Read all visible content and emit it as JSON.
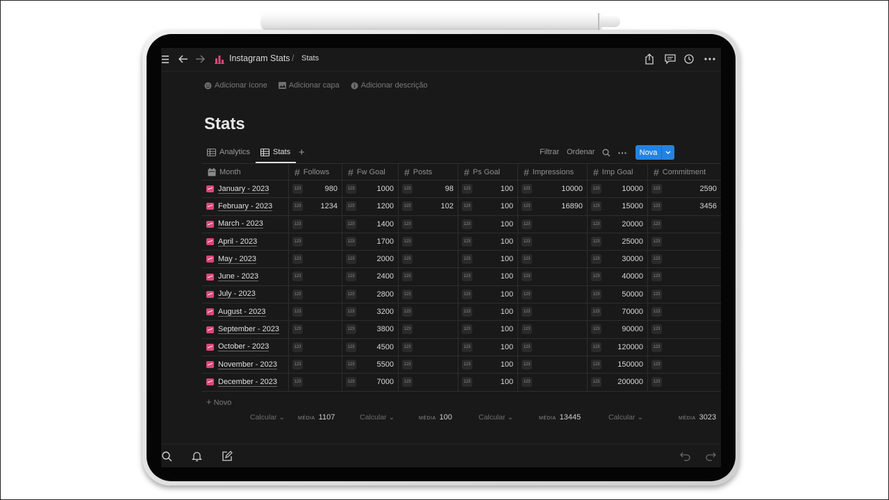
{
  "topbar": {
    "title": "Instagram Stats",
    "separator": "/",
    "page": "Stats"
  },
  "meta_actions": {
    "add_icon": "Adicionar ícone",
    "add_cover": "Adicionar capa",
    "add_description": "Adicionar descrição"
  },
  "page_title": "Stats",
  "views": {
    "tabs": [
      "Analytics",
      "Stats"
    ],
    "active": "Stats",
    "filter": "Filtrar",
    "sort": "Ordenar",
    "new_button": "Nova"
  },
  "table": {
    "columns": [
      "Month",
      "Follows",
      "Fw Goal",
      "Posts",
      "Ps Goal",
      "Impressions",
      "Imp Goal",
      "Commitment"
    ],
    "type_badge": "123",
    "rows": [
      {
        "month": "January - 2023",
        "follows": "980",
        "fw_goal": "1000",
        "posts": "98",
        "ps_goal": "100",
        "impressions": "10000",
        "imp_goal": "10000",
        "commitment": "2590"
      },
      {
        "month": "February - 2023",
        "follows": "1234",
        "fw_goal": "1200",
        "posts": "102",
        "ps_goal": "100",
        "impressions": "16890",
        "imp_goal": "15000",
        "commitment": "3456"
      },
      {
        "month": "March - 2023",
        "follows": "",
        "fw_goal": "1400",
        "posts": "",
        "ps_goal": "100",
        "impressions": "",
        "imp_goal": "20000",
        "commitment": ""
      },
      {
        "month": "April - 2023",
        "follows": "",
        "fw_goal": "1700",
        "posts": "",
        "ps_goal": "100",
        "impressions": "",
        "imp_goal": "25000",
        "commitment": ""
      },
      {
        "month": "May - 2023",
        "follows": "",
        "fw_goal": "2000",
        "posts": "",
        "ps_goal": "100",
        "impressions": "",
        "imp_goal": "30000",
        "commitment": ""
      },
      {
        "month": "June - 2023",
        "follows": "",
        "fw_goal": "2400",
        "posts": "",
        "ps_goal": "100",
        "impressions": "",
        "imp_goal": "40000",
        "commitment": ""
      },
      {
        "month": "July - 2023",
        "follows": "",
        "fw_goal": "2800",
        "posts": "",
        "ps_goal": "100",
        "impressions": "",
        "imp_goal": "50000",
        "commitment": ""
      },
      {
        "month": "August - 2023",
        "follows": "",
        "fw_goal": "3200",
        "posts": "",
        "ps_goal": "100",
        "impressions": "",
        "imp_goal": "70000",
        "commitment": ""
      },
      {
        "month": "September - 2023",
        "follows": "",
        "fw_goal": "3800",
        "posts": "",
        "ps_goal": "100",
        "impressions": "",
        "imp_goal": "90000",
        "commitment": ""
      },
      {
        "month": "October - 2023",
        "follows": "",
        "fw_goal": "4500",
        "posts": "",
        "ps_goal": "100",
        "impressions": "",
        "imp_goal": "120000",
        "commitment": ""
      },
      {
        "month": "November - 2023",
        "follows": "",
        "fw_goal": "5500",
        "posts": "",
        "ps_goal": "100",
        "impressions": "",
        "imp_goal": "150000",
        "commitment": ""
      },
      {
        "month": "December - 2023",
        "follows": "",
        "fw_goal": "7000",
        "posts": "",
        "ps_goal": "100",
        "impressions": "",
        "imp_goal": "200000",
        "commitment": ""
      }
    ],
    "new_row": "Novo"
  },
  "footer": {
    "calc_label": "Calcular",
    "media_label": "MÉDIA",
    "media_follows": "1107",
    "media_posts": "100",
    "media_impressions": "13445",
    "media_commitment": "3023"
  },
  "colors": {
    "background": "#191919",
    "accent": "#2383e2",
    "month_icon": "#d9487a",
    "brand_icon": "#d9487a"
  }
}
